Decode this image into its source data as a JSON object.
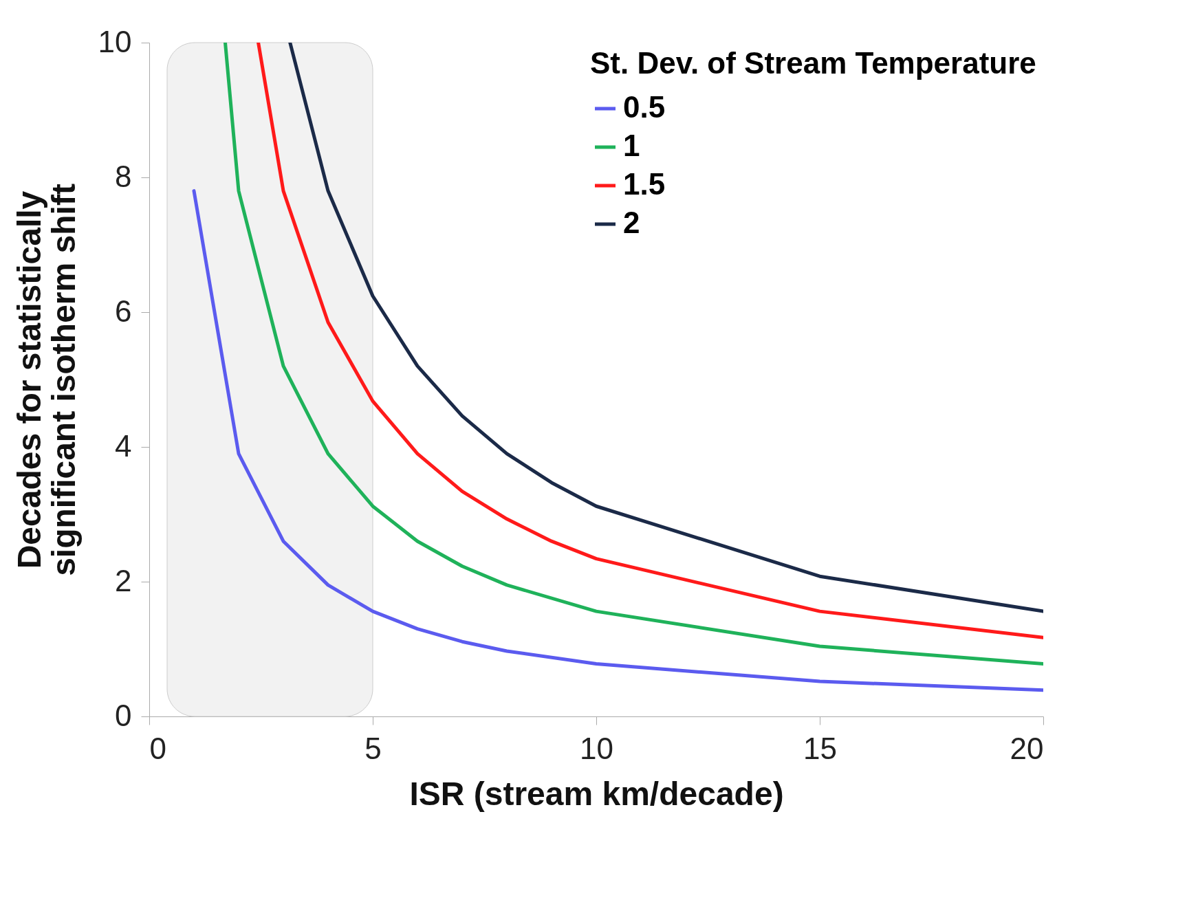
{
  "chart_data": {
    "type": "line",
    "xlabel": "ISR (stream km/decade)",
    "ylabel": "Decades for statistically significant isotherm shift",
    "legend_title": "St. Dev. of Stream Temperature",
    "legend": "top right",
    "grid": false,
    "marker": "none",
    "line_style": "solid",
    "xlim": [
      0,
      20
    ],
    "xticks": [
      0,
      5,
      10,
      15,
      20
    ],
    "ylim": [
      0,
      10
    ],
    "yticks": [
      0,
      2,
      4,
      6,
      8,
      10
    ],
    "bands": [
      {
        "axis": "x",
        "from": 0.4,
        "to": 5,
        "color": "#f2f2f2"
      }
    ],
    "series": [
      {
        "name": "0.5",
        "color": "#5b5bef",
        "x": [
          1,
          2,
          3,
          4,
          5,
          6,
          7,
          8,
          10,
          15,
          20
        ],
        "values": [
          7.8,
          3.9,
          2.6,
          1.95,
          1.56,
          1.3,
          1.11,
          0.97,
          0.78,
          0.52,
          0.39
        ]
      },
      {
        "name": "1",
        "color": "#1fb25a",
        "x": [
          1.7,
          2,
          3,
          4,
          5,
          6,
          7,
          8,
          10,
          15,
          20
        ],
        "values": [
          10,
          7.8,
          5.2,
          3.9,
          3.12,
          2.6,
          2.23,
          1.95,
          1.56,
          1.04,
          0.78
        ]
      },
      {
        "name": "1.5",
        "color": "#ff1a1a",
        "x": [
          2.44,
          3,
          4,
          5,
          6,
          7,
          8,
          9,
          10,
          15,
          20
        ],
        "values": [
          10,
          7.8,
          5.85,
          4.68,
          3.9,
          3.34,
          2.93,
          2.6,
          2.34,
          1.56,
          1.17
        ]
      },
      {
        "name": "2",
        "color": "#1b2a48",
        "x": [
          3.15,
          4,
          5,
          6,
          7,
          8,
          9,
          10,
          15,
          20
        ],
        "values": [
          10,
          7.8,
          6.24,
          5.2,
          4.46,
          3.9,
          3.47,
          3.12,
          2.08,
          1.56
        ]
      }
    ]
  }
}
